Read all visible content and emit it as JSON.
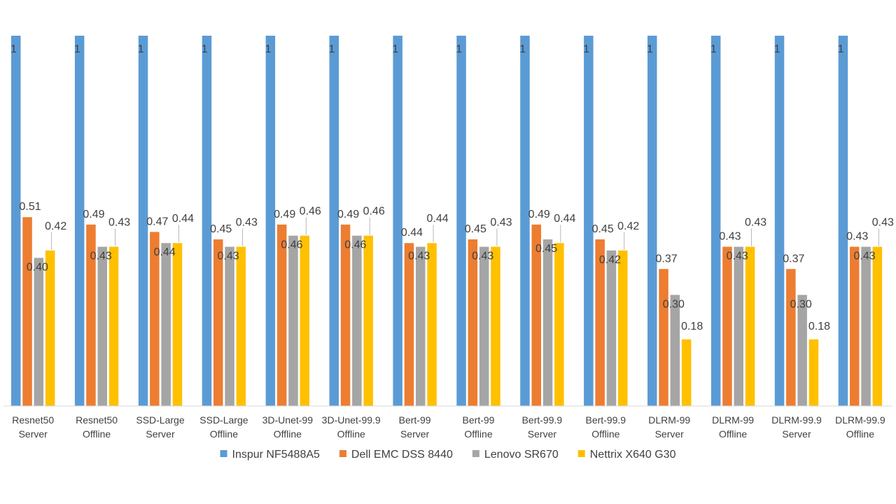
{
  "chart_data": {
    "type": "bar",
    "title": "",
    "xlabel": "",
    "ylabel": "",
    "ylim": [
      0,
      1
    ],
    "grid": false,
    "legend_position": "bottom",
    "categories": [
      [
        "Resnet50",
        "Server"
      ],
      [
        "Resnet50",
        "Offline"
      ],
      [
        "SSD-Large",
        "Server"
      ],
      [
        "SSD-Large",
        "Offline"
      ],
      [
        "3D-Unet-99",
        "Offline"
      ],
      [
        "3D-Unet-99.9",
        "Offline"
      ],
      [
        "Bert-99",
        "Server"
      ],
      [
        "Bert-99",
        "Offline"
      ],
      [
        "Bert-99.9",
        "Server"
      ],
      [
        "Bert-99.9",
        "Offline"
      ],
      [
        "DLRM-99",
        "Server"
      ],
      [
        "DLRM-99",
        "Offline"
      ],
      [
        "DLRM-99.9",
        "Server"
      ],
      [
        "DLRM-99.9",
        "Offline"
      ]
    ],
    "series": [
      {
        "name": "Inspur NF5488A5",
        "color": "#5B9BD5",
        "values": [
          1,
          1,
          1,
          1,
          1,
          1,
          1,
          1,
          1,
          1,
          1,
          1,
          1,
          1
        ],
        "labels": [
          "1",
          "1",
          "1",
          "1",
          "1",
          "1",
          "1",
          "1",
          "1",
          "1",
          "1",
          "1",
          "1",
          "1"
        ]
      },
      {
        "name": "Dell EMC DSS 8440",
        "color": "#ED7D31",
        "values": [
          0.51,
          0.49,
          0.47,
          0.45,
          0.49,
          0.49,
          0.44,
          0.45,
          0.49,
          0.45,
          0.37,
          0.43,
          0.37,
          0.43
        ],
        "labels": [
          "0.51",
          "0.49",
          "0.47",
          "0.45",
          "0.49",
          "0.49",
          "0.44",
          "0.45",
          "0.49",
          "0.45",
          "0.37",
          "0.43",
          "0.37",
          "0.43"
        ]
      },
      {
        "name": "Lenovo SR670",
        "color": "#A5A5A5",
        "values": [
          0.4,
          0.43,
          0.44,
          0.43,
          0.46,
          0.46,
          0.43,
          0.43,
          0.45,
          0.42,
          0.3,
          0.43,
          0.3,
          0.43
        ],
        "labels": [
          "0.40",
          "0.43",
          "0.44",
          "0.43",
          "0.46",
          "0.46",
          "0.43",
          "0.43",
          "0.45",
          "0.42",
          "0.30",
          "0.43",
          "0.30",
          "0.43"
        ]
      },
      {
        "name": "Nettrix X640 G30",
        "color": "#FFC000",
        "values": [
          0.42,
          0.43,
          0.44,
          0.43,
          0.46,
          0.46,
          0.44,
          0.43,
          0.44,
          0.42,
          0.18,
          0.43,
          0.18,
          0.43
        ],
        "labels": [
          "0.42",
          "0.43",
          "0.44",
          "0.43",
          "0.46",
          "0.46",
          "0.44",
          "0.43",
          "0.44",
          "0.42",
          "0.18",
          "0.43",
          "0.18",
          "0.43"
        ]
      }
    ]
  }
}
